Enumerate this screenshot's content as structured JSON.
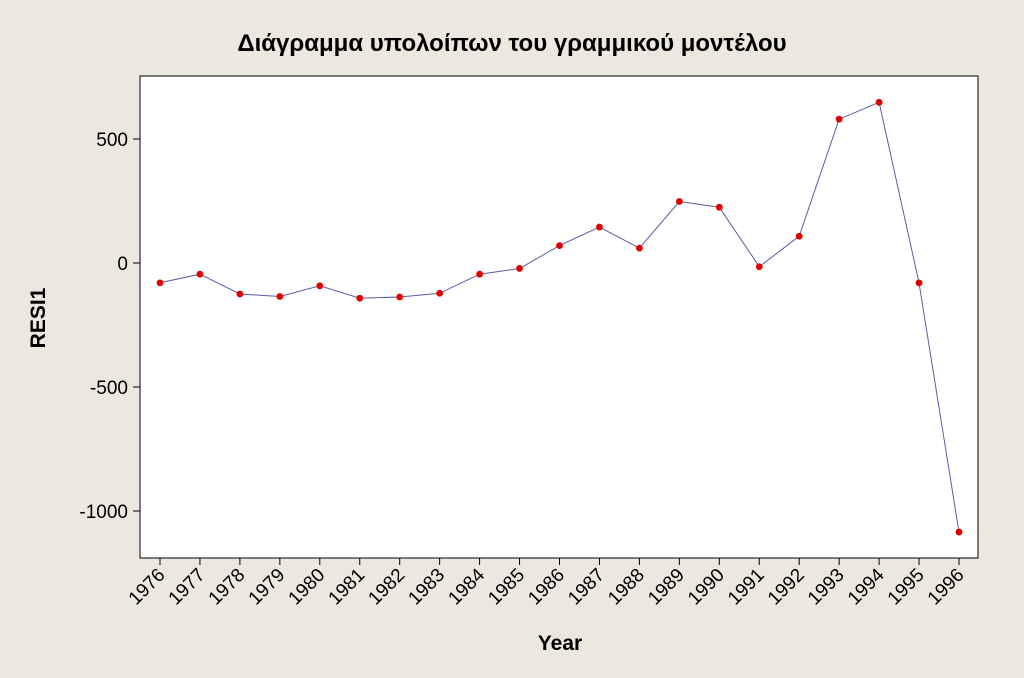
{
  "chart_data": {
    "type": "line",
    "title": "Διάγραμμα υπολοίπων του γραμμικού μοντέλου",
    "xlabel": "Year",
    "ylabel": "RESI1",
    "ylim": [
      -1200,
      750
    ],
    "yticks": [
      500,
      0,
      -500,
      -1000
    ],
    "ytick_labels": [
      "500",
      "0",
      "-500",
      "-1000"
    ],
    "grid": false,
    "legend": "none",
    "categories": [
      "1976",
      "1977",
      "1978",
      "1979",
      "1980",
      "1981",
      "1982",
      "1983",
      "1984",
      "1985",
      "1986",
      "1987",
      "1988",
      "1989",
      "1990",
      "1991",
      "1992",
      "1993",
      "1994",
      "1995",
      "1996"
    ],
    "series": [
      {
        "values": [
          -80,
          -45,
          -125,
          -135,
          -92,
          -142,
          -137,
          -122,
          -45,
          -22,
          70,
          145,
          60,
          248,
          225,
          -15,
          108,
          580,
          648,
          -80,
          -1085
        ]
      }
    ],
    "colors": {
      "line": "#5b5ba8",
      "marker": "#e00000",
      "plot_background": "#ffffff",
      "page_background": "#ede8df"
    }
  }
}
